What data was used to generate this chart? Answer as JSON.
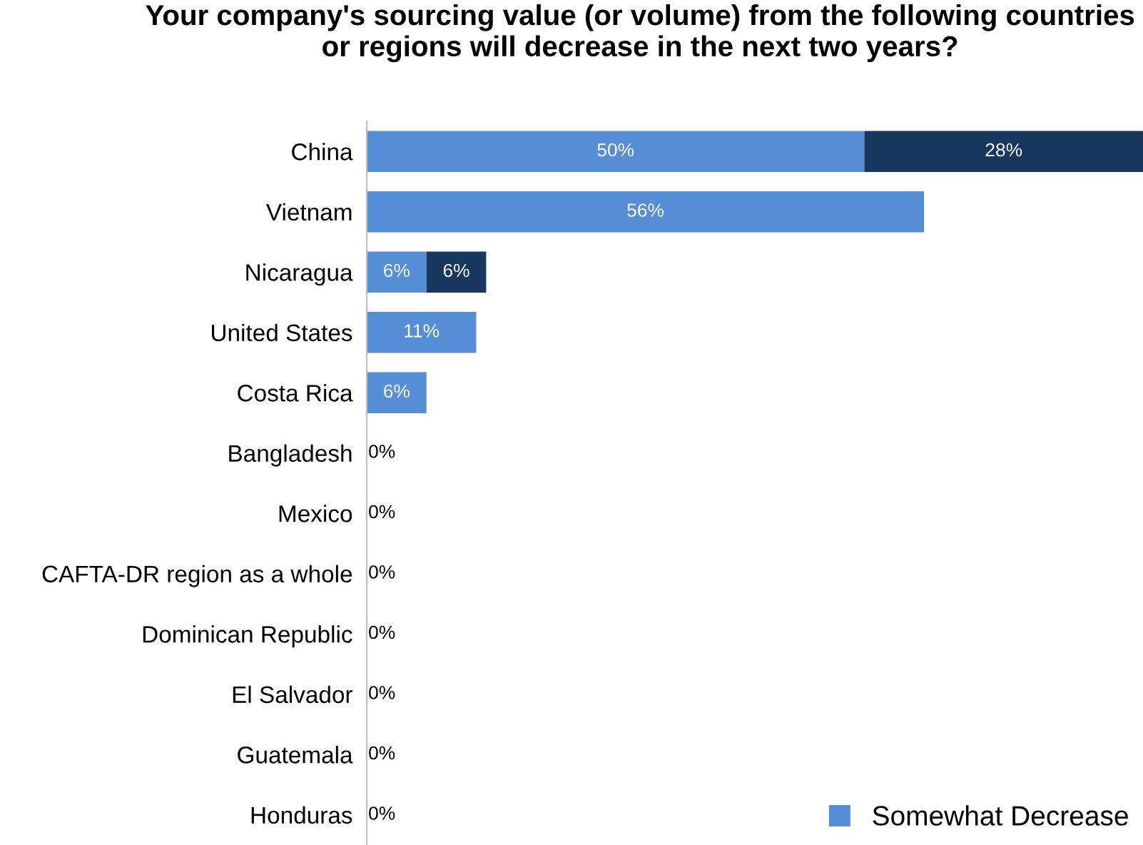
{
  "chart_data": {
    "type": "bar",
    "orientation": "horizontal",
    "stacked": true,
    "title": "Your company's sourcing value (or volume) from the following countries or regions will decrease in the next two years?",
    "categories": [
      "China",
      "Vietnam",
      "Nicaragua",
      "United States",
      "Costa Rica",
      "Bangladesh",
      "Mexico",
      "CAFTA-DR region as a whole",
      "Dominican Republic",
      "El Salvador",
      "Guatemala",
      "Honduras"
    ],
    "series": [
      {
        "name": "Somewhat Decrease",
        "color": "#558ed5",
        "values": [
          50,
          56,
          6,
          11,
          6,
          0,
          0,
          0,
          0,
          0,
          0,
          0
        ],
        "value_labels": [
          "50%",
          "56%",
          "6%",
          "11%",
          "6%",
          "0%",
          "0%",
          "0%",
          "0%",
          "0%",
          "0%",
          "0%"
        ]
      },
      {
        "color": "#17375e",
        "values": [
          28,
          null,
          6,
          null,
          null,
          null,
          null,
          null,
          null,
          null,
          null,
          null
        ],
        "value_labels": [
          "28%",
          null,
          "6%",
          null,
          null,
          null,
          null,
          null,
          null,
          null,
          null,
          null
        ]
      }
    ],
    "xlim": [
      0,
      78
    ],
    "tick_labels": "y",
    "legend": "bottom right"
  }
}
